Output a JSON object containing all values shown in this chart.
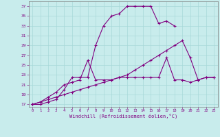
{
  "xlabel": "Windchill (Refroidissement éolien,°C)",
  "bg_color": "#c8ecec",
  "line_color": "#800080",
  "grid_color": "#a8d8d8",
  "xlim": [
    -0.5,
    23.5
  ],
  "ylim": [
    16.5,
    38
  ],
  "yticks": [
    17,
    19,
    21,
    23,
    25,
    27,
    29,
    31,
    33,
    35,
    37
  ],
  "xticks": [
    0,
    1,
    2,
    3,
    4,
    5,
    6,
    7,
    8,
    9,
    10,
    11,
    12,
    13,
    14,
    15,
    16,
    17,
    18,
    19,
    20,
    21,
    22,
    23
  ],
  "s0x": [
    0,
    1,
    2,
    3,
    4,
    5,
    6,
    7,
    8,
    9,
    10,
    11,
    12,
    13,
    14,
    15,
    16,
    17,
    18
  ],
  "s0y": [
    17,
    17,
    17.5,
    18,
    20,
    22.5,
    22.5,
    22.5,
    29,
    33,
    35,
    35.5,
    37,
    37,
    37,
    37,
    33.5,
    34,
    33
  ],
  "s1x": [
    0,
    1,
    2,
    3,
    4,
    5,
    6,
    7,
    8,
    9,
    10,
    11,
    12,
    13,
    14,
    15,
    16,
    17,
    18,
    19,
    20,
    21,
    22,
    23
  ],
  "s1y": [
    17,
    17.5,
    18.5,
    19.5,
    21,
    21.5,
    22,
    26,
    22,
    22,
    22,
    22.5,
    22.5,
    22.5,
    22.5,
    22.5,
    22.5,
    26.5,
    22,
    22,
    21.5,
    22,
    22.5,
    22.5
  ],
  "s2x": [
    0,
    1,
    2,
    3,
    4,
    5,
    6,
    7,
    8,
    9,
    10,
    11,
    12,
    13,
    14,
    15,
    16,
    17,
    18,
    19,
    20,
    21,
    22,
    23
  ],
  "s2y": [
    17,
    17.5,
    18,
    18.5,
    19,
    19.5,
    20,
    20.5,
    21,
    21.5,
    22,
    22.5,
    23,
    24,
    25,
    26,
    27,
    28,
    29,
    30,
    26.5,
    22,
    22.5,
    22.5
  ]
}
